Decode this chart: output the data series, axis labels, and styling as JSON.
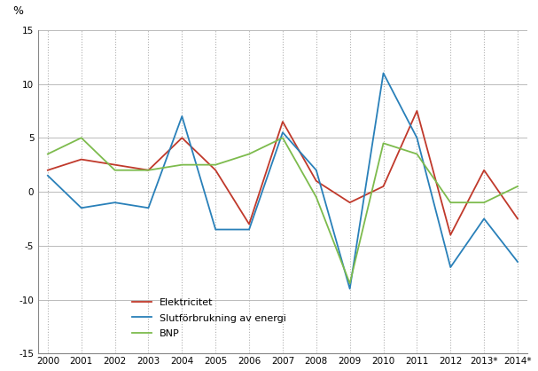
{
  "title": "",
  "ylabel": "%",
  "years": [
    2000,
    2001,
    2002,
    2003,
    2004,
    2005,
    2006,
    2007,
    2008,
    2009,
    2010,
    2011,
    2012,
    2013,
    2014
  ],
  "xtick_labels": [
    "2000",
    "2001",
    "2002",
    "2003",
    "2004",
    "2005",
    "2006",
    "2007",
    "2008",
    "2009",
    "2010",
    "2011",
    "2012",
    "2013*",
    "2014*"
  ],
  "elektricitet": [
    2.0,
    3.0,
    2.5,
    2.0,
    5.0,
    2.0,
    -3.0,
    6.5,
    1.0,
    -1.0,
    0.5,
    7.5,
    -4.0,
    2.0,
    -2.5
  ],
  "slutforbrukning": [
    1.5,
    -1.5,
    -1.0,
    -1.5,
    7.0,
    -3.5,
    -3.5,
    5.5,
    2.0,
    -9.0,
    11.0,
    5.0,
    -7.0,
    -2.5,
    -6.5
  ],
  "bnp": [
    3.5,
    5.0,
    2.0,
    2.0,
    2.5,
    2.5,
    3.5,
    5.0,
    -0.5,
    -8.5,
    4.5,
    3.5,
    -1.0,
    -1.0,
    0.5
  ],
  "elektricitet_color": "#c0392b",
  "slutforbrukning_color": "#2980b9",
  "bnp_color": "#7dbb4d",
  "ylim": [
    -15,
    15
  ],
  "yticks": [
    -15,
    -10,
    -5,
    0,
    5,
    10,
    15
  ],
  "grid_color": "#b0b0b0",
  "background_color": "#ffffff",
  "legend_elektricitet": "Elektricitet",
  "legend_slutforbrukning": "Slutförbrukning av energi",
  "legend_bnp": "BNP"
}
